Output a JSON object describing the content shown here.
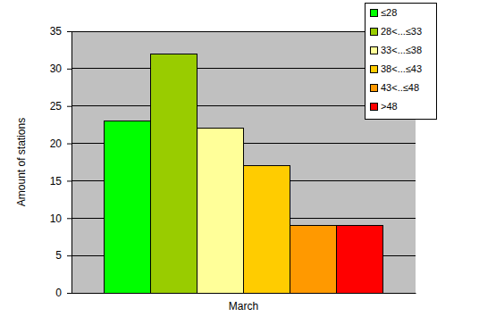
{
  "chart_data": {
    "type": "bar",
    "y_label": "Amount of stations",
    "categories": [
      "March"
    ],
    "series": [
      {
        "name": "≤28",
        "color": "#00ff00",
        "values": [
          23
        ]
      },
      {
        "name": "28<...≤33",
        "color": "#99cc00",
        "values": [
          32
        ]
      },
      {
        "name": "33<...≤38",
        "color": "#ffff99",
        "values": [
          22
        ]
      },
      {
        "name": "38<...≤43",
        "color": "#ffcc00",
        "values": [
          17
        ]
      },
      {
        "name": "43<..≤48",
        "color": "#ff9900",
        "values": [
          9
        ]
      },
      {
        "name": ">48",
        "color": "#ff0000",
        "values": [
          9
        ]
      }
    ],
    "ylim": [
      0,
      35
    ],
    "yticks": [
      0,
      5,
      10,
      15,
      20,
      25,
      30,
      35
    ],
    "grid": true,
    "legend": "top-right"
  }
}
